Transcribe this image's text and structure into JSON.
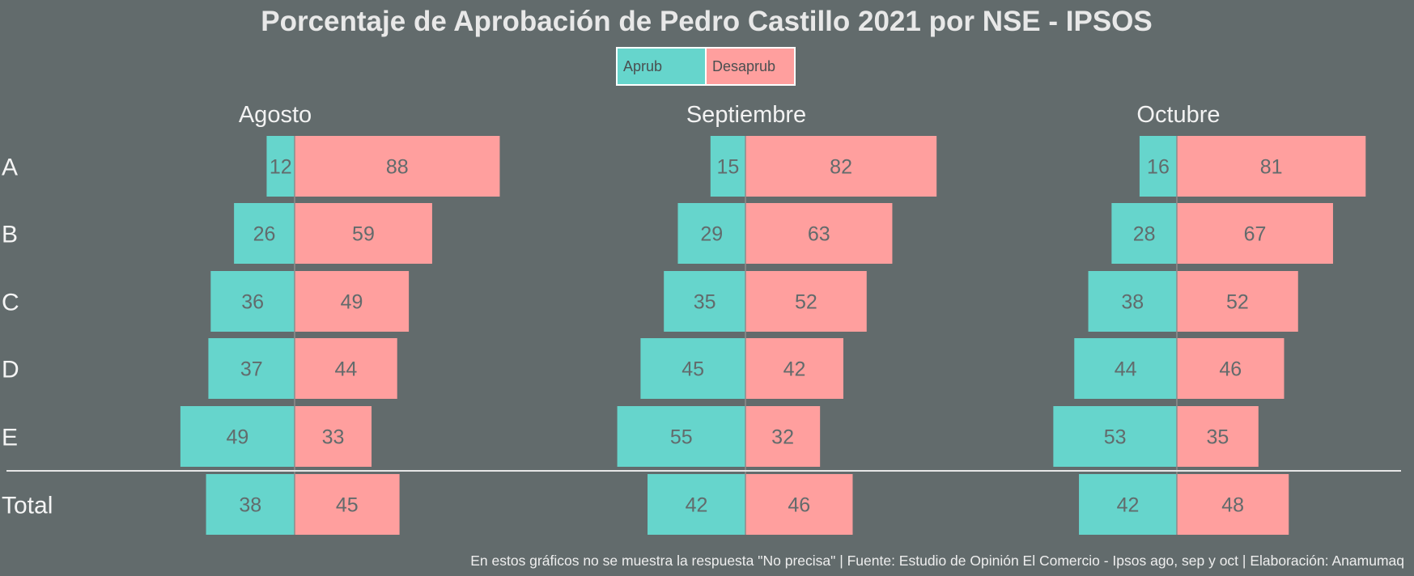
{
  "chart_data": {
    "type": "bar",
    "orientation": "horizontal",
    "layout": "diverging",
    "title": "Porcentaje de Aprobación de Pedro Castillo 2021 por NSE - IPSOS",
    "legend": {
      "placement": "top-center",
      "entries": [
        {
          "name": "Aprub",
          "color": "#66d5cc"
        },
        {
          "name": "Desaprub",
          "color": "#ff9f9e"
        }
      ]
    },
    "categories": [
      "A",
      "B",
      "C",
      "D",
      "E",
      "Total"
    ],
    "panels": [
      {
        "name": "Agosto",
        "series": [
          {
            "name": "Aprub",
            "values": [
              12,
              26,
              36,
              37,
              49,
              38
            ]
          },
          {
            "name": "Desaprub",
            "values": [
              88,
              59,
              49,
              44,
              33,
              45
            ]
          }
        ]
      },
      {
        "name": "Septiembre",
        "series": [
          {
            "name": "Aprub",
            "values": [
              15,
              29,
              35,
              45,
              55,
              42
            ]
          },
          {
            "name": "Desaprub",
            "values": [
              82,
              63,
              52,
              42,
              32,
              46
            ]
          }
        ]
      },
      {
        "name": "Octubre",
        "series": [
          {
            "name": "Aprub",
            "values": [
              16,
              28,
              38,
              44,
              53,
              42
            ]
          },
          {
            "name": "Desaprub",
            "values": [
              81,
              67,
              52,
              46,
              35,
              48
            ]
          }
        ]
      }
    ],
    "grid": false,
    "footer": "En estos gráficos no se muestra la respuesta \"No precisa\" | Fuente: Estudio de Opinión El Comercio - Ipsos ago, sep y oct | Elaboración: Anamumaq"
  },
  "colors": {
    "background": "#626b6c",
    "aprub": "#66d5cc",
    "desaprub": "#ff9f9e",
    "separator": "#e6e6e6"
  }
}
